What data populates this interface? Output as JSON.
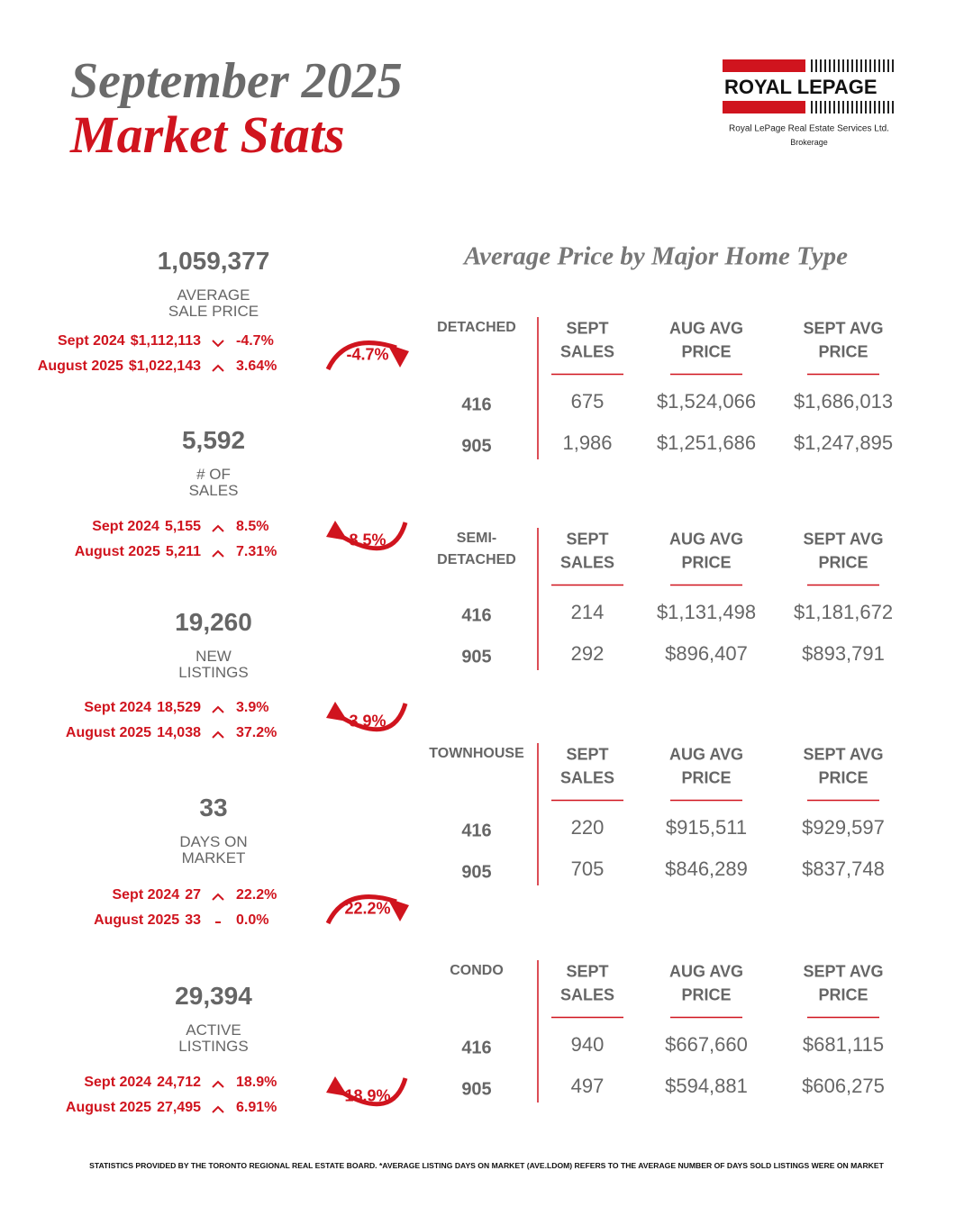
{
  "header": {
    "title_line1": "September 2025",
    "title_line2": "Market Stats"
  },
  "logo": {
    "brand": "ROYAL LEPAGE",
    "company": "Royal LePage Real Estate Services Ltd.",
    "subtitle": "Brokerage"
  },
  "stats": [
    {
      "value": "1,059,377",
      "label_lines": [
        "AVERAGE",
        "SALE PRICE"
      ],
      "comparisons": [
        {
          "period": "Sept 2024",
          "value": "$1,112,113",
          "direction": "down",
          "change": "-4.7%"
        },
        {
          "period": "August 2025",
          "value": "$1,022,143",
          "direction": "up",
          "change": "3.64%"
        }
      ],
      "badge": "-4.7%",
      "badge_direction": "down"
    },
    {
      "value": "5,592",
      "label_lines": [
        "# OF",
        "SALES"
      ],
      "comparisons": [
        {
          "period": "Sept 2024",
          "value": "5,155",
          "direction": "up",
          "change": "8.5%"
        },
        {
          "period": "August 2025",
          "value": "5,211",
          "direction": "up",
          "change": "7.31%"
        }
      ],
      "badge": "8.5%",
      "badge_direction": "up"
    },
    {
      "value": "19,260",
      "label_lines": [
        "NEW",
        "LISTINGS"
      ],
      "comparisons": [
        {
          "period": "Sept 2024",
          "value": "18,529",
          "direction": "up",
          "change": "3.9%"
        },
        {
          "period": "August 2025",
          "value": "14,038",
          "direction": "up",
          "change": "37.2%"
        }
      ],
      "badge": "3.9%",
      "badge_direction": "up"
    },
    {
      "value": "33",
      "label_lines": [
        "DAYS ON",
        "MARKET"
      ],
      "comparisons": [
        {
          "period": "Sept 2024",
          "value": "27",
          "direction": "up",
          "change": "22.2%"
        },
        {
          "period": "August 2025",
          "value": "33",
          "direction": "flat",
          "change": "0.0%"
        }
      ],
      "badge": "22.2%",
      "badge_direction": "down"
    },
    {
      "value": "29,394",
      "label_lines": [
        "ACTIVE",
        "LISTINGS"
      ],
      "comparisons": [
        {
          "period": "Sept 2024",
          "value": "24,712",
          "direction": "up",
          "change": "18.9%"
        },
        {
          "period": "August 2025",
          "value": "27,495",
          "direction": "up",
          "change": "6.91%"
        }
      ],
      "badge": "18.9%",
      "badge_direction": "up"
    }
  ],
  "section_title": "Average Price by Major Home Type",
  "tables": [
    {
      "type_lines": [
        "DETACHED"
      ],
      "headers": [
        [
          "SEPT",
          "SALES"
        ],
        [
          "AUG AVG",
          "PRICE"
        ],
        [
          "SEPT AVG",
          "PRICE"
        ]
      ],
      "rows": [
        [
          "416",
          "675",
          "$1,524,066",
          "$1,686,013"
        ],
        [
          "905",
          "1,986",
          "$1,251,686",
          "$1,247,895"
        ]
      ]
    },
    {
      "type_lines": [
        "SEMI-",
        "DETACHED"
      ],
      "headers": [
        [
          "SEPT",
          "SALES"
        ],
        [
          "AUG AVG",
          "PRICE"
        ],
        [
          "SEPT AVG",
          "PRICE"
        ]
      ],
      "rows": [
        [
          "416",
          "214",
          "$1,131,498",
          "$1,181,672"
        ],
        [
          "905",
          "292",
          "$896,407",
          "$893,791"
        ]
      ]
    },
    {
      "type_lines": [
        "TOWNHOUSE"
      ],
      "headers": [
        [
          "SEPT",
          "SALES"
        ],
        [
          "AUG AVG",
          "PRICE"
        ],
        [
          "SEPT AVG",
          "PRICE"
        ]
      ],
      "rows": [
        [
          "416",
          "220",
          "$915,511",
          "$929,597"
        ],
        [
          "905",
          "705",
          "$846,289",
          "$837,748"
        ]
      ]
    },
    {
      "type_lines": [
        "CONDO"
      ],
      "headers": [
        [
          "SEPT",
          "SALES"
        ],
        [
          "AUG AVG",
          "PRICE"
        ],
        [
          "SEPT AVG",
          "PRICE"
        ]
      ],
      "rows": [
        [
          "416",
          "940",
          "$667,660",
          "$681,115"
        ],
        [
          "905",
          "497",
          "$594,881",
          "$606,275"
        ]
      ]
    }
  ],
  "footer": "STATISTICS PROVIDED BY THE TORONTO REGIONAL REAL ESTATE BOARD. *AVERAGE LISTING DAYS ON MARKET (AVE.LDOM) REFERS TO THE AVERAGE NUMBER OF DAYS SOLD LISTINGS WERE ON MARKET"
}
